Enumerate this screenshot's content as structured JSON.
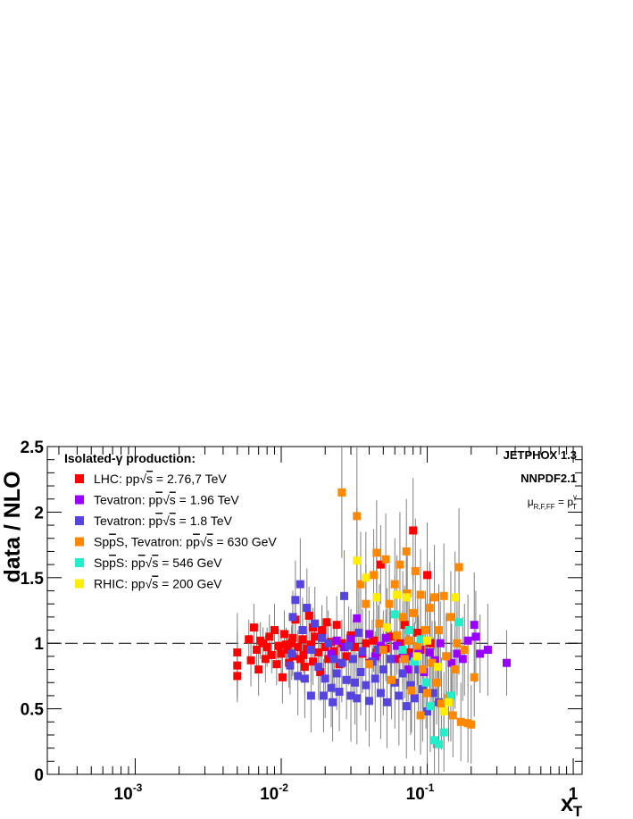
{
  "chart_data": {
    "type": "scatter",
    "title": "",
    "xlabel": "x_T",
    "ylabel": "data / NLO",
    "x_scale": "log",
    "xlim": [
      0.00025,
      1.15
    ],
    "ylim": [
      0,
      2.5
    ],
    "reference_line": 1.0,
    "y_ticks": [
      "0",
      "0.5",
      "1",
      "1.5",
      "2",
      "2.5"
    ],
    "x_ticks": [
      {
        "base": "10",
        "exp": "-3"
      },
      {
        "base": "10",
        "exp": "-2"
      },
      {
        "base": "10",
        "exp": "-1"
      },
      {
        "base": "1",
        "exp": ""
      }
    ],
    "legend_title": "Isolated-γ production:",
    "legend_placement": "top-left",
    "annotations": {
      "generator": "JETPHOX 1.3",
      "pdf": "NNPDF2.1",
      "scale": "μ_R,F,FF = p_T^γ"
    },
    "series": [
      {
        "name": "LHC: pp√s = 2.76,7 TeV",
        "label": {
          "pre": "LHC: pp",
          "post": "s = 2.76,7 TeV"
        },
        "color": "#ff0000",
        "points": [
          [
            0.005,
            0.75,
            0.2
          ],
          [
            0.005,
            0.83,
            0.25
          ],
          [
            0.005,
            0.93,
            0.3
          ],
          [
            0.006,
            1.03,
            0.15
          ],
          [
            0.0062,
            0.87,
            0.2
          ],
          [
            0.0065,
            1.12,
            0.18
          ],
          [
            0.0068,
            0.95,
            0.16
          ],
          [
            0.007,
            0.8,
            0.2
          ],
          [
            0.0072,
            1.02,
            0.14
          ],
          [
            0.0075,
            1.0,
            0.12
          ],
          [
            0.0078,
            0.88,
            0.18
          ],
          [
            0.008,
            0.97,
            0.15
          ],
          [
            0.0083,
            1.05,
            0.17
          ],
          [
            0.0086,
            0.91,
            0.14
          ],
          [
            0.009,
            1.1,
            0.2
          ],
          [
            0.0093,
            0.84,
            0.16
          ],
          [
            0.0096,
            0.98,
            0.13
          ],
          [
            0.01,
            0.92,
            0.15
          ],
          [
            0.0102,
            0.74,
            0.2
          ],
          [
            0.0105,
            1.07,
            0.18
          ],
          [
            0.011,
            0.95,
            0.12
          ],
          [
            0.0113,
            0.85,
            0.19
          ],
          [
            0.0118,
            1.0,
            0.14
          ],
          [
            0.012,
            0.9,
            0.15
          ],
          [
            0.0125,
            1.18,
            0.2
          ],
          [
            0.013,
            0.97,
            0.13
          ],
          [
            0.0135,
            0.88,
            0.17
          ],
          [
            0.014,
            1.03,
            0.16
          ],
          [
            0.0145,
            0.82,
            0.21
          ],
          [
            0.015,
            0.96,
            0.15
          ],
          [
            0.0155,
            1.21,
            0.22
          ],
          [
            0.016,
            0.99,
            0.14
          ],
          [
            0.0165,
            0.86,
            0.18
          ],
          [
            0.017,
            1.05,
            0.17
          ],
          [
            0.018,
            0.93,
            0.16
          ],
          [
            0.0185,
            0.78,
            0.22
          ],
          [
            0.019,
            1.1,
            0.19
          ],
          [
            0.02,
            0.97,
            0.15
          ],
          [
            0.0205,
            1.16,
            0.2
          ],
          [
            0.021,
            0.88,
            0.18
          ],
          [
            0.022,
            1.01,
            0.14
          ],
          [
            0.023,
            0.94,
            0.16
          ],
          [
            0.024,
            1.14,
            0.22
          ],
          [
            0.025,
            0.84,
            0.2
          ],
          [
            0.026,
            1.0,
            0.18
          ],
          [
            0.028,
            0.9,
            0.17
          ],
          [
            0.03,
            1.06,
            0.2
          ],
          [
            0.032,
            0.97,
            0.19
          ],
          [
            0.034,
            1.08,
            0.22
          ],
          [
            0.036,
            0.92,
            0.2
          ],
          [
            0.038,
            1.0,
            0.18
          ],
          [
            0.04,
            0.85,
            0.22
          ],
          [
            0.043,
            1.02,
            0.24
          ],
          [
            0.045,
            0.93,
            0.2
          ],
          [
            0.048,
            1.6,
            0.3
          ],
          [
            0.052,
            0.96,
            0.25
          ],
          [
            0.056,
            1.05,
            0.24
          ],
          [
            0.06,
            0.88,
            0.22
          ],
          [
            0.065,
            1.0,
            0.26
          ],
          [
            0.07,
            1.14,
            0.3
          ],
          [
            0.075,
            0.93,
            0.28
          ],
          [
            0.08,
            1.86,
            0.4
          ],
          [
            0.086,
            1.08,
            0.3
          ],
          [
            0.09,
            0.95,
            0.3
          ],
          [
            0.1,
            1.52,
            0.4
          ],
          [
            0.105,
            1.0,
            0.35
          ],
          [
            0.012,
            1.04,
            0.12
          ],
          [
            0.0165,
            1.12,
            0.15
          ],
          [
            0.0108,
            0.99,
            0.13
          ],
          [
            0.0142,
            0.91,
            0.14
          ]
        ]
      },
      {
        "name": "Tevatron: pp̄√s = 1.96 TeV",
        "label": {
          "pre": "Tevatron: p",
          "bar": "p",
          "post": "s = 1.96 TeV"
        },
        "color": "#9900ff",
        "points": [
          [
            0.022,
            0.92,
            0.15
          ],
          [
            0.024,
            1.02,
            0.14
          ],
          [
            0.027,
            0.97,
            0.16
          ],
          [
            0.03,
            1.03,
            0.18
          ],
          [
            0.033,
            1.19,
            0.2
          ],
          [
            0.036,
            0.93,
            0.16
          ],
          [
            0.04,
            1.07,
            0.18
          ],
          [
            0.044,
            0.9,
            0.19
          ],
          [
            0.048,
            0.98,
            0.2
          ],
          [
            0.052,
            1.04,
            0.22
          ],
          [
            0.057,
            0.88,
            0.22
          ],
          [
            0.062,
            0.98,
            0.2
          ],
          [
            0.068,
            0.92,
            0.24
          ],
          [
            0.074,
            0.8,
            0.26
          ],
          [
            0.08,
            0.9,
            0.25
          ],
          [
            0.087,
            0.95,
            0.26
          ],
          [
            0.095,
            0.78,
            0.3
          ],
          [
            0.104,
            0.93,
            0.3
          ],
          [
            0.113,
            0.87,
            0.3
          ],
          [
            0.123,
            1.0,
            0.32
          ],
          [
            0.135,
            0.9,
            0.33
          ],
          [
            0.147,
            0.85,
            0.3
          ],
          [
            0.16,
            0.92,
            0.32
          ],
          [
            0.175,
            0.88,
            0.32
          ],
          [
            0.19,
            1.02,
            0.35
          ],
          [
            0.21,
            1.14,
            0.4
          ],
          [
            0.23,
            0.92,
            0.3
          ],
          [
            0.26,
            0.95,
            0.35
          ],
          [
            0.35,
            0.85,
            0.25
          ],
          [
            0.215,
            1.05,
            0.35
          ]
        ]
      },
      {
        "name": "Tevatron: pp̄√s = 1.8 TeV",
        "label": {
          "pre": "Tevatron: p",
          "bar": "p",
          "post": "s = 1.8 TeV"
        },
        "color": "#5544dd",
        "points": [
          [
            0.012,
            1.2,
            0.2
          ],
          [
            0.0125,
            1.33,
            0.3
          ],
          [
            0.013,
            0.75,
            0.3
          ],
          [
            0.0135,
            1.45,
            0.35
          ],
          [
            0.014,
            1.1,
            0.25
          ],
          [
            0.0145,
            0.73,
            0.3
          ],
          [
            0.015,
            1.27,
            0.3
          ],
          [
            0.016,
            0.95,
            0.25
          ],
          [
            0.017,
            1.15,
            0.28
          ],
          [
            0.018,
            0.82,
            0.25
          ],
          [
            0.019,
            1.04,
            0.25
          ],
          [
            0.02,
            0.73,
            0.3
          ],
          [
            0.021,
            1.0,
            0.25
          ],
          [
            0.022,
            0.66,
            0.3
          ],
          [
            0.023,
            0.88,
            0.26
          ],
          [
            0.024,
            0.77,
            0.28
          ],
          [
            0.025,
            0.63,
            0.3
          ],
          [
            0.026,
            0.85,
            0.3
          ],
          [
            0.027,
            1.36,
            0.35
          ],
          [
            0.028,
            0.72,
            0.3
          ],
          [
            0.029,
            0.98,
            0.3
          ],
          [
            0.03,
            0.6,
            0.35
          ],
          [
            0.031,
            0.88,
            0.3
          ],
          [
            0.032,
            0.7,
            0.32
          ],
          [
            0.033,
            0.58,
            0.35
          ],
          [
            0.034,
            1.08,
            0.35
          ],
          [
            0.035,
            0.78,
            0.33
          ],
          [
            0.036,
            0.94,
            0.32
          ],
          [
            0.038,
            0.68,
            0.35
          ],
          [
            0.04,
            0.56,
            0.35
          ],
          [
            0.042,
            0.86,
            0.32
          ],
          [
            0.044,
            0.73,
            0.33
          ],
          [
            0.046,
            0.95,
            0.34
          ],
          [
            0.048,
            0.62,
            0.35
          ],
          [
            0.05,
            0.8,
            0.35
          ],
          [
            0.053,
            0.55,
            0.35
          ],
          [
            0.056,
            0.88,
            0.36
          ],
          [
            0.06,
            0.7,
            0.35
          ],
          [
            0.064,
            0.6,
            0.38
          ],
          [
            0.068,
            0.77,
            0.36
          ],
          [
            0.072,
            0.52,
            0.4
          ],
          [
            0.077,
            0.68,
            0.38
          ],
          [
            0.082,
            0.58,
            0.4
          ],
          [
            0.087,
            0.8,
            0.38
          ],
          [
            0.093,
            0.65,
            0.4
          ],
          [
            0.1,
            0.48,
            0.4
          ],
          [
            0.11,
            0.62,
            0.42
          ],
          [
            0.12,
            0.55,
            0.45
          ],
          [
            0.016,
            0.6,
            0.28
          ],
          [
            0.0115,
            0.83,
            0.22
          ],
          [
            0.0118,
            0.92,
            0.2
          ],
          [
            0.0225,
            0.55,
            0.3
          ],
          [
            0.0195,
            0.6,
            0.28
          ]
        ]
      },
      {
        "name": "Sp̄pS, Tevatron: pp̄√s = 630 GeV",
        "label": {
          "pre": "Sp",
          "bar": "p",
          "mid": "S, Tevatron: p",
          "bar2": "p",
          "post": "s = 630 GeV"
        },
        "color": "#ff8800",
        "points": [
          [
            0.026,
            2.15,
            0.5
          ],
          [
            0.033,
            1.97,
            0.6
          ],
          [
            0.035,
            1.45,
            0.4
          ],
          [
            0.038,
            1.3,
            0.3
          ],
          [
            0.04,
            0.84,
            0.3
          ],
          [
            0.043,
            1.52,
            0.35
          ],
          [
            0.045,
            1.69,
            0.4
          ],
          [
            0.047,
            1.15,
            0.3
          ],
          [
            0.05,
            0.95,
            0.3
          ],
          [
            0.052,
            1.64,
            0.35
          ],
          [
            0.055,
            1.3,
            0.3
          ],
          [
            0.057,
            0.72,
            0.3
          ],
          [
            0.06,
            1.45,
            0.35
          ],
          [
            0.062,
            1.06,
            0.3
          ],
          [
            0.065,
            1.6,
            0.4
          ],
          [
            0.068,
            1.2,
            0.35
          ],
          [
            0.07,
            0.88,
            0.3
          ],
          [
            0.073,
            1.38,
            0.35
          ],
          [
            0.075,
            1.02,
            0.3
          ],
          [
            0.078,
            0.64,
            0.32
          ],
          [
            0.08,
            1.23,
            0.3
          ],
          [
            0.083,
            1.55,
            0.4
          ],
          [
            0.086,
            0.98,
            0.3
          ],
          [
            0.09,
            1.37,
            0.35
          ],
          [
            0.093,
            0.8,
            0.3
          ],
          [
            0.097,
            1.1,
            0.3
          ],
          [
            0.1,
            0.62,
            0.35
          ],
          [
            0.104,
            1.27,
            0.35
          ],
          [
            0.108,
            0.85,
            0.32
          ],
          [
            0.112,
            1.35,
            0.4
          ],
          [
            0.116,
            0.7,
            0.32
          ],
          [
            0.12,
            1.1,
            0.35
          ],
          [
            0.125,
            0.54,
            0.35
          ],
          [
            0.13,
            1.36,
            0.4
          ],
          [
            0.135,
            0.9,
            0.3
          ],
          [
            0.14,
            0.58,
            0.32
          ],
          [
            0.145,
            1.2,
            0.35
          ],
          [
            0.15,
            0.45,
            0.32
          ],
          [
            0.155,
            0.8,
            0.3
          ],
          [
            0.16,
            1.0,
            0.35
          ],
          [
            0.165,
            1.58,
            0.45
          ],
          [
            0.17,
            0.4,
            0.3
          ],
          [
            0.18,
            0.95,
            0.35
          ],
          [
            0.19,
            0.39,
            0.3
          ],
          [
            0.2,
            0.38,
            0.3
          ],
          [
            0.21,
            0.74,
            0.3
          ],
          [
            0.09,
            0.45,
            0.3
          ],
          [
            0.072,
            1.7,
            0.4
          ]
        ]
      },
      {
        "name": "Sp̄pS: pp̄√s = 546 GeV",
        "label": {
          "pre": "Sp",
          "bar": "p",
          "mid": "S: p",
          "bar2": "p",
          "post": "s = 546 GeV"
        },
        "color": "#22eecc",
        "points": [
          [
            0.06,
            1.22,
            0.3
          ],
          [
            0.068,
            0.95,
            0.3
          ],
          [
            0.075,
            1.1,
            0.3
          ],
          [
            0.082,
            0.86,
            0.3
          ],
          [
            0.09,
            1.03,
            0.32
          ],
          [
            0.098,
            0.7,
            0.35
          ],
          [
            0.105,
            0.52,
            0.35
          ],
          [
            0.112,
            0.26,
            0.3
          ],
          [
            0.12,
            0.23,
            0.3
          ],
          [
            0.13,
            0.32,
            0.3
          ],
          [
            0.145,
            0.6,
            0.35
          ],
          [
            0.165,
            1.16,
            0.4
          ]
        ]
      },
      {
        "name": "RHIC: pp√s = 200 GeV",
        "label": {
          "pre": "RHIC: pp",
          "post": "s = 200 GeV"
        },
        "color": "#ffee00",
        "points": [
          [
            0.033,
            1.63,
            0.4
          ],
          [
            0.038,
            1.5,
            0.35
          ],
          [
            0.045,
            1.35,
            0.3
          ],
          [
            0.053,
            1.12,
            0.3
          ],
          [
            0.062,
            1.37,
            0.3
          ],
          [
            0.072,
            1.35,
            0.3
          ],
          [
            0.085,
            0.9,
            0.3
          ],
          [
            0.1,
            1.02,
            0.3
          ],
          [
            0.118,
            0.82,
            0.3
          ],
          [
            0.14,
            0.55,
            0.3
          ],
          [
            0.155,
            1.35,
            0.35
          ],
          [
            0.13,
            0.48,
            0.3
          ]
        ]
      }
    ]
  }
}
